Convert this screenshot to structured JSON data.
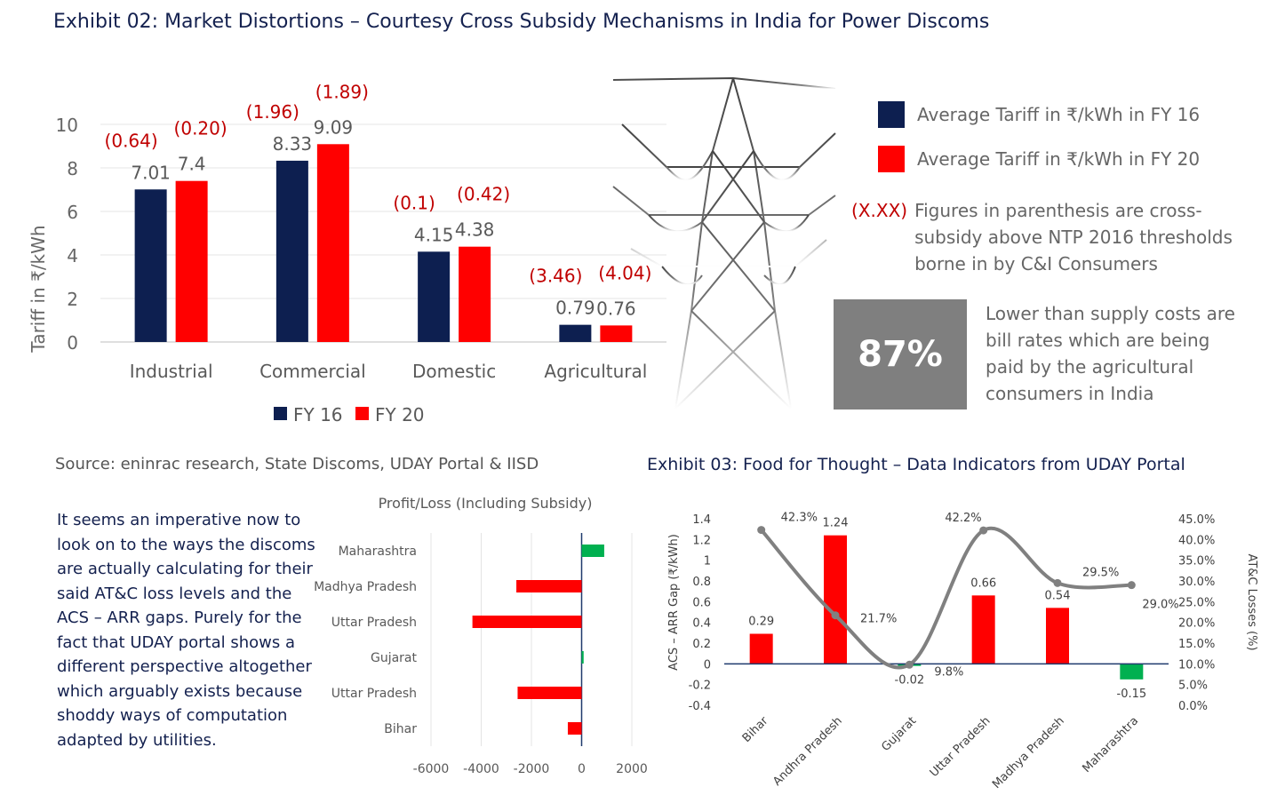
{
  "title": "Exhibit 02: Market Distortions – Courtesy Cross Subsidy Mechanisms in India for Power Discoms",
  "source": "Source: eninrac research, State Discoms, UDAY Portal & IISD",
  "paragraph": "It seems an imperative now to look on to the ways the discoms are actually calculating for their said AT&C loss levels and the ACS – ARR gaps. Purely for the fact that UDAY portal shows a different perspective altogether which arguably exists because shoddy ways of computation adapted by utilities.",
  "side_legend": [
    {
      "label": "Average Tariff in ₹/kWh in FY 16",
      "color": "#0d1f50"
    },
    {
      "label": "Average Tariff in ₹/kWh in FY 20",
      "color": "#ff0000"
    }
  ],
  "note": {
    "marker": "(X.XX)",
    "text": "Figures in parenthesis are cross-subsidy above NTP 2016 thresholds borne in by C&I Consumers"
  },
  "kpi": {
    "value": "87%",
    "text": "Lower than supply costs are bill rates which are being paid by the agricultural consumers in India",
    "color": "#7f7f7f"
  },
  "chart_data": [
    {
      "type": "bar",
      "ylabel": "Tariff in ₹/kWh",
      "xlabel": "",
      "ylim": [
        0,
        10
      ],
      "yticks": [
        0,
        2,
        4,
        6,
        8,
        10
      ],
      "grid": true,
      "legend": "bottom",
      "categories": [
        "Industrial",
        "Commercial",
        "Domestic",
        "Agricultural"
      ],
      "series": [
        {
          "name": "FY 16",
          "color": "#0d1f50",
          "values": [
            7.01,
            8.33,
            4.15,
            0.79
          ],
          "labels": [
            "7.01",
            "8.33",
            "4.15",
            "0.79"
          ],
          "cross_subsidy": [
            "(0.64)",
            "(1.96)",
            "(0.1)",
            "(3.46)"
          ]
        },
        {
          "name": "FY 20",
          "color": "#ff0000",
          "values": [
            7.4,
            9.09,
            4.38,
            0.76
          ],
          "labels": [
            "7.4",
            "9.09",
            "4.38",
            "0.76"
          ],
          "cross_subsidy": [
            "(0.20)",
            "(1.89)",
            "(0.42)",
            "(4.04)"
          ]
        }
      ]
    },
    {
      "type": "bar",
      "orientation": "horizontal",
      "title": "Profit/Loss (Including Subsidy)",
      "xlim": [
        -6000,
        2000
      ],
      "xticks": [
        -6000,
        -4000,
        -2000,
        0,
        2000
      ],
      "grid": true,
      "categories": [
        "Maharashtra",
        "Madhya Pradesh",
        "Uttar Pradesh",
        "Gujarat",
        "Uttar Pradesh",
        "Bihar"
      ],
      "values": [
        900,
        -2600,
        -4350,
        80,
        -2550,
        -550
      ],
      "colors": {
        "positive": "#00b050",
        "negative": "#ff0000"
      }
    },
    {
      "type": "bar",
      "title": "Exhibit 03: Food for Thought – Data Indicators from UDAY Portal",
      "categories": [
        "Bihar",
        "Andhra Pradesh",
        "Gujarat",
        "Uttar Pradesh",
        "Madhya Pradesh",
        "Maharashtra"
      ],
      "ylabel": "ACS – ARR Gap (₹/kWh)",
      "ylim": [
        -0.4,
        1.4
      ],
      "yticks": [
        "-0.4",
        "-0.2",
        "0",
        "0.2",
        "0.4",
        "0.6",
        "0.8",
        "1",
        "1.2",
        "1.4"
      ],
      "y2label": "AT&C Losses (%)",
      "y2lim": [
        0,
        45
      ],
      "y2ticks": [
        "0.0%",
        "5.0%",
        "10.0%",
        "15.0%",
        "20.0%",
        "25.0%",
        "30.0%",
        "35.0%",
        "40.0%",
        "45.0%"
      ],
      "series": [
        {
          "name": "ACS – ARR Gap",
          "kind": "bar",
          "axis": "left",
          "values": [
            0.29,
            1.24,
            -0.02,
            0.66,
            0.54,
            -0.15
          ],
          "labels": [
            "0.29",
            "1.24",
            "-0.02",
            "0.66",
            "0.54",
            "-0.15"
          ],
          "colors": {
            "positive": "#ff0000",
            "negative": "#00b050"
          }
        },
        {
          "name": "AT&C Losses",
          "kind": "line",
          "axis": "right",
          "color": "#808080",
          "values": [
            42.3,
            21.7,
            9.8,
            42.2,
            29.5,
            29.0
          ],
          "labels": [
            "42.3%",
            "21.7%",
            "9.8%",
            "42.2%",
            "29.5%",
            "29.0%"
          ]
        }
      ]
    }
  ]
}
